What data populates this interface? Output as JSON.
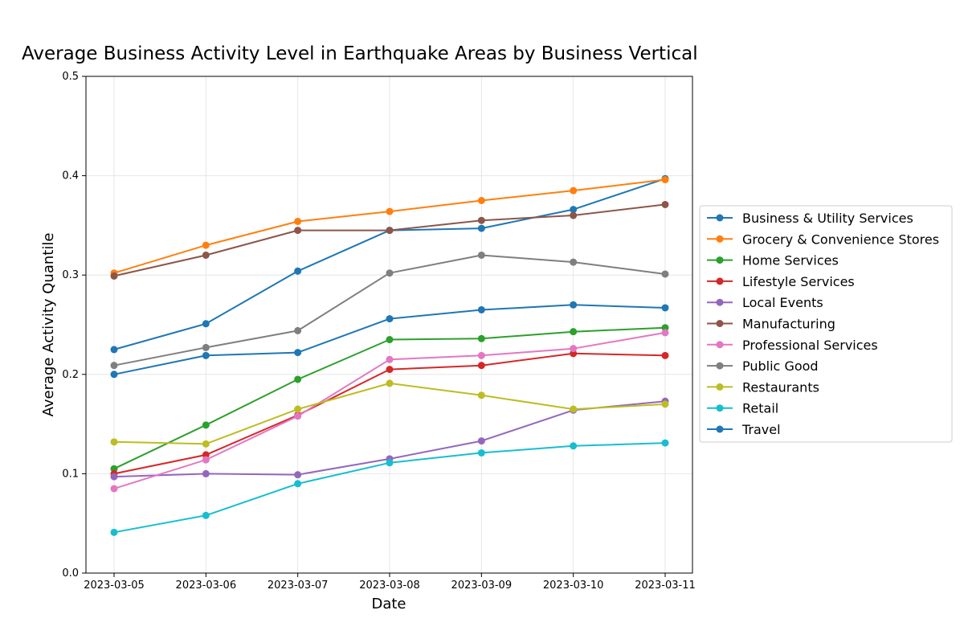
{
  "chart_data": {
    "type": "line",
    "title": "Average Business Activity Level in Earthquake Areas by Business Vertical",
    "xlabel": "Date",
    "ylabel": "Average Activity Quantile",
    "x": [
      "2023-03-05",
      "2023-03-06",
      "2023-03-07",
      "2023-03-08",
      "2023-03-09",
      "2023-03-10",
      "2023-03-11"
    ],
    "ylim": [
      0,
      0.5
    ],
    "yticks": [
      "0.0",
      "0.1",
      "0.2",
      "0.3",
      "0.4",
      "0.5"
    ],
    "grid": true,
    "legend_position": "center-right",
    "series": [
      {
        "name": "Business & Utility Services",
        "color": "#1f77b4",
        "values": [
          0.225,
          0.251,
          0.304,
          0.345,
          0.347,
          0.366,
          0.397
        ]
      },
      {
        "name": "Grocery & Convenience Stores",
        "color": "#ff7f0e",
        "values": [
          0.302,
          0.33,
          0.354,
          0.364,
          0.375,
          0.385,
          0.396
        ]
      },
      {
        "name": "Home Services",
        "color": "#2ca02c",
        "values": [
          0.105,
          0.149,
          0.195,
          0.235,
          0.236,
          0.243,
          0.247
        ]
      },
      {
        "name": "Lifestyle Services",
        "color": "#d62728",
        "values": [
          0.1,
          0.119,
          0.159,
          0.205,
          0.209,
          0.221,
          0.219
        ]
      },
      {
        "name": "Local Events",
        "color": "#9467bd",
        "values": [
          0.097,
          0.1,
          0.099,
          0.115,
          0.133,
          0.164,
          0.173
        ]
      },
      {
        "name": "Manufacturing",
        "color": "#8c564b",
        "values": [
          0.299,
          0.32,
          0.345,
          0.345,
          0.355,
          0.36,
          0.371
        ]
      },
      {
        "name": "Professional Services",
        "color": "#e377c2",
        "values": [
          0.085,
          0.114,
          0.158,
          0.215,
          0.219,
          0.226,
          0.242
        ]
      },
      {
        "name": "Public Good",
        "color": "#7f7f7f",
        "values": [
          0.209,
          0.227,
          0.244,
          0.302,
          0.32,
          0.313,
          0.301
        ]
      },
      {
        "name": "Restaurants",
        "color": "#bcbd22",
        "values": [
          0.132,
          0.13,
          0.165,
          0.191,
          0.179,
          0.165,
          0.17
        ]
      },
      {
        "name": "Retail",
        "color": "#17becf",
        "values": [
          0.041,
          0.058,
          0.09,
          0.111,
          0.121,
          0.128,
          0.131
        ]
      },
      {
        "name": "Travel",
        "color": "#1f77b4",
        "values": [
          0.2,
          0.219,
          0.222,
          0.256,
          0.265,
          0.27,
          0.267
        ]
      }
    ]
  }
}
